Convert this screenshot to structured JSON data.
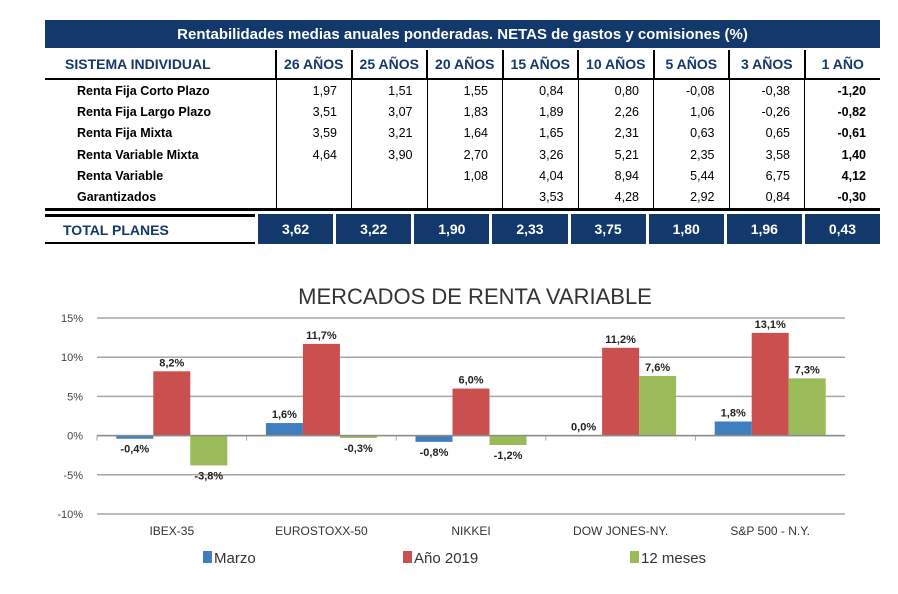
{
  "table": {
    "title": "Rentabilidades medias anuales ponderadas. NETAS de gastos y comisiones (%)",
    "headers": [
      "SISTEMA INDIVIDUAL",
      "26 AÑOS",
      "25 AÑOS",
      "20 AÑOS",
      "15 AÑOS",
      "10 AÑOS",
      "5 AÑOS",
      "3 AÑOS",
      "1 AÑO"
    ],
    "rows": [
      [
        "Renta Fija Corto Plazo",
        "1,97",
        "1,51",
        "1,55",
        "0,84",
        "0,80",
        "-0,08",
        "-0,38",
        "-1,20"
      ],
      [
        "Renta Fija Largo Plazo",
        "3,51",
        "3,07",
        "1,83",
        "1,89",
        "2,26",
        "1,06",
        "-0,26",
        "-0,82"
      ],
      [
        "Renta Fija Mixta",
        "3,59",
        "3,21",
        "1,64",
        "1,65",
        "2,31",
        "0,63",
        "0,65",
        "-0,61"
      ],
      [
        "Renta Variable Mixta",
        "4,64",
        "3,90",
        "2,70",
        "3,26",
        "5,21",
        "2,35",
        "3,58",
        "1,40"
      ],
      [
        "Renta Variable",
        "",
        "",
        "1,08",
        "4,04",
        "8,94",
        "5,44",
        "6,75",
        "4,12"
      ],
      [
        "Garantizados",
        "",
        "",
        "",
        "3,53",
        "4,28",
        "2,92",
        "0,84",
        "-0,30"
      ]
    ],
    "total": [
      "TOTAL PLANES",
      "3,62",
      "3,22",
      "1,90",
      "2,33",
      "3,75",
      "1,80",
      "1,96",
      "0,43"
    ],
    "header_color": "#13386b"
  },
  "chart_data": {
    "type": "bar",
    "title": "MERCADOS DE RENTA VARIABLE",
    "categories": [
      "IBEX-35",
      "EUROSTOXX-50",
      "NIKKEI",
      "DOW JONES-NY.",
      "S&P 500 - N.Y."
    ],
    "series": [
      {
        "name": "Marzo",
        "color": "#3f7fbf",
        "values": [
          -0.4,
          1.6,
          -0.8,
          0.0,
          1.8
        ],
        "labels": [
          "-0,4%",
          "1,6%",
          "-0,8%",
          "0,0%",
          "1,8%"
        ]
      },
      {
        "name": "Año 2019",
        "color": "#c9504f",
        "values": [
          8.2,
          11.7,
          6.0,
          11.2,
          13.1
        ],
        "labels": [
          "8,2%",
          "11,7%",
          "6,0%",
          "11,2%",
          "13,1%"
        ]
      },
      {
        "name": "12 meses",
        "color": "#9bbb59",
        "values": [
          -3.8,
          -0.3,
          -1.2,
          7.6,
          7.3
        ],
        "labels": [
          "-3,8%",
          "-0,3%",
          "-1,2%",
          "7,6%",
          "7,3%"
        ]
      }
    ],
    "yticks": [
      "15%",
      "10%",
      "5%",
      "0%",
      "-5%",
      "-10%"
    ],
    "ylim": [
      -10,
      15
    ],
    "grid": true,
    "legend": "bottom"
  }
}
